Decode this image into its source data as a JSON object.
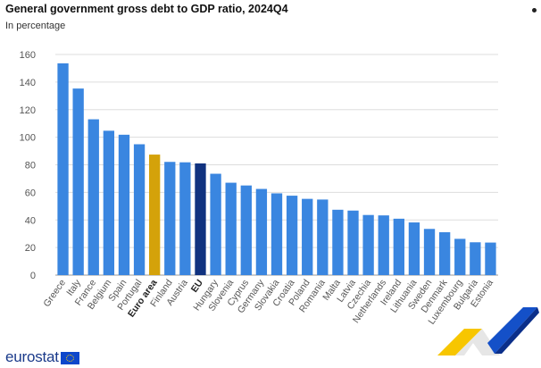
{
  "title": "General government gross debt to GDP ratio, 2024Q4",
  "subtitle": "In percentage",
  "logo": "eurostat",
  "colors": {
    "bar": "#3a86e0",
    "euro_area": "#d4a20a",
    "eu": "#10327f",
    "grid": "#dddddd",
    "axis_text": "#555555"
  },
  "chart_data": {
    "type": "bar",
    "title": "General government gross debt to GDP ratio, 2024Q4",
    "subtitle": "In percentage",
    "ylim": [
      0,
      160
    ],
    "yticks": [
      0,
      20,
      40,
      60,
      80,
      100,
      120,
      140,
      160
    ],
    "grid": true,
    "categories": [
      "Greece",
      "Italy",
      "France",
      "Belgium",
      "Spain",
      "Portugal",
      "Euro area",
      "Finland",
      "Austria",
      "EU",
      "Hungary",
      "Slovenia",
      "Cyprus",
      "Germany",
      "Slovakia",
      "Croatia",
      "Poland",
      "Romania",
      "Malta",
      "Latvia",
      "Czechia",
      "Netherlands",
      "Ireland",
      "Lithuania",
      "Sweden",
      "Denmark",
      "Luxembourg",
      "Bulgaria",
      "Estonia"
    ],
    "values": [
      153.6,
      135.3,
      113.0,
      104.7,
      101.8,
      94.9,
      87.4,
      82.1,
      81.8,
      81.0,
      73.5,
      67.0,
      65.0,
      62.5,
      59.3,
      57.6,
      55.3,
      54.8,
      47.4,
      46.8,
      43.6,
      43.3,
      40.9,
      38.2,
      33.5,
      31.1,
      26.3,
      23.8,
      23.6
    ],
    "highlight": {
      "Euro area": "euro_area",
      "EU": "eu"
    }
  }
}
